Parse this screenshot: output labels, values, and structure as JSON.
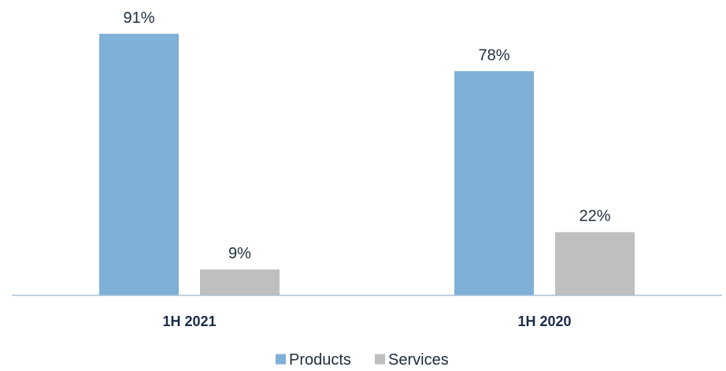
{
  "chart_data": {
    "type": "bar",
    "categories": [
      "1H 2021",
      "1H 2020"
    ],
    "series": [
      {
        "name": "Products",
        "values": [
          91,
          78
        ],
        "labels": [
          "91%",
          "78%"
        ],
        "color": "#7fb0d7"
      },
      {
        "name": "Services",
        "values": [
          9,
          22
        ],
        "labels": [
          "9%",
          "22%"
        ],
        "color": "#bfbfbf"
      }
    ],
    "ylim": [
      0,
      100
    ],
    "grid": false,
    "legend_position": "bottom",
    "axis_color": "#a8c4dc"
  }
}
